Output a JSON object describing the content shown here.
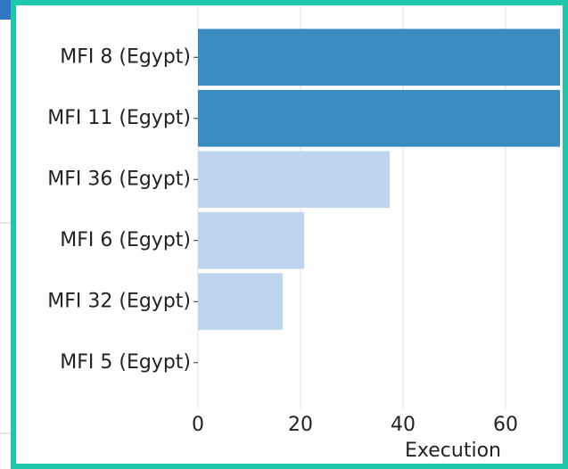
{
  "chart_data": {
    "type": "barh",
    "categories": [
      "MFI 8 (Egypt)",
      "MFI 11 (Egypt)",
      "MFI 36 (Egypt)",
      "MFI 6 (Egypt)",
      "MFI 32 (Egypt)",
      "MFI 5 (Egypt)"
    ],
    "values": [
      70.6,
      70.6,
      37.4,
      20.7,
      16.5,
      0
    ],
    "colors": [
      "#3a8bc0",
      "#3a8bc0",
      "#bfd5ee",
      "#bfd5ee",
      "#bfd5ee",
      "#bfd5ee"
    ],
    "xlabel": "Execution",
    "xlim": [
      0,
      70.6
    ],
    "xticks": [
      0,
      20,
      40,
      60
    ],
    "grid": true
  }
}
